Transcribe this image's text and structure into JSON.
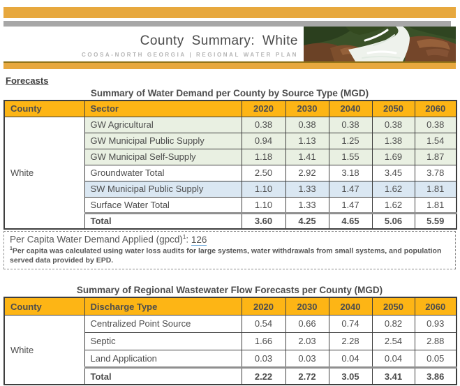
{
  "header": {
    "title": "County Summary:  White",
    "subtitle": "COOSA-NORTH GEORGIA | REGIONAL WATER PLAN",
    "photo": "waterfall-photo"
  },
  "section_heading": "Forecasts",
  "colors": {
    "banner_gold": "#E7A83E",
    "banner_gray": "#A7A7A7",
    "table_header_gold": "#FDB515",
    "row_green": "#E9F0E2",
    "row_blue": "#DAE7F2",
    "text_dark": "#4D4D4D",
    "link_underline_blue": "#6DA9DC"
  },
  "water_demand_table": {
    "title": "Summary of Water Demand per County by Source Type (MGD)",
    "columns": [
      "County",
      "Sector",
      "2020",
      "2030",
      "2040",
      "2050",
      "2060"
    ],
    "county": "White",
    "rows": [
      {
        "label": "GW Agricultural",
        "values": [
          "0.38",
          "0.38",
          "0.38",
          "0.38",
          "0.38"
        ],
        "style": "green"
      },
      {
        "label": "GW Municipal Public Supply",
        "values": [
          "0.94",
          "1.13",
          "1.25",
          "1.38",
          "1.54"
        ],
        "style": "green"
      },
      {
        "label": "GW Municipal Self-Supply",
        "values": [
          "1.18",
          "1.41",
          "1.55",
          "1.69",
          "1.87"
        ],
        "style": "green"
      },
      {
        "label": "Groundwater Total",
        "values": [
          "2.50",
          "2.92",
          "3.18",
          "3.45",
          "3.78"
        ],
        "style": "plain"
      },
      {
        "label": "SW Municipal Public Supply",
        "values": [
          "1.10",
          "1.33",
          "1.47",
          "1.62",
          "1.81"
        ],
        "style": "blue"
      },
      {
        "label": "Surface Water Total",
        "values": [
          "1.10",
          "1.33",
          "1.47",
          "1.62",
          "1.81"
        ],
        "style": "plain"
      },
      {
        "label": "Total",
        "values": [
          "3.60",
          "4.25",
          "4.65",
          "5.06",
          "5.59"
        ],
        "style": "total"
      }
    ]
  },
  "per_capita": {
    "label": "Per Capita Water Demand Applied (gpcd)",
    "sup": "1",
    "separator": ": ",
    "value": "126",
    "footnote_sup": "1",
    "footnote": "Per capita was calculated using water loss audits for large systems, water withdrawals from small systems, and population served data provided by EPD."
  },
  "wastewater_table": {
    "title": "Summary of Regional Wastewater Flow Forecasts per County (MGD)",
    "columns": [
      "County",
      "Discharge Type",
      "2020",
      "2030",
      "2040",
      "2050",
      "2060"
    ],
    "county": "White",
    "rows": [
      {
        "label": "Centralized Point Source",
        "values": [
          "0.54",
          "0.66",
          "0.74",
          "0.82",
          "0.93"
        ],
        "style": "plain"
      },
      {
        "label": "Septic",
        "values": [
          "1.66",
          "2.03",
          "2.28",
          "2.54",
          "2.88"
        ],
        "style": "plain"
      },
      {
        "label": "Land Application",
        "values": [
          "0.03",
          "0.03",
          "0.04",
          "0.04",
          "0.05"
        ],
        "style": "plain"
      },
      {
        "label": "Total",
        "values": [
          "2.22",
          "2.72",
          "3.05",
          "3.41",
          "3.86"
        ],
        "style": "total"
      }
    ]
  }
}
